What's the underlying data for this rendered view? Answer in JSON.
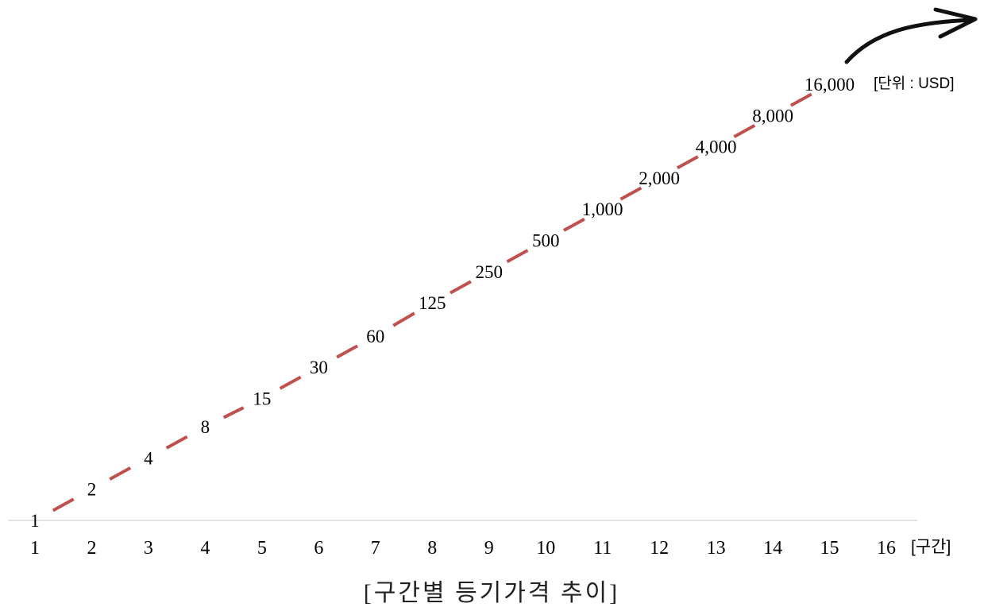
{
  "chart_data": {
    "type": "line",
    "title": "[구간별 등기가격 추이]",
    "x_unit_label": "[구간]",
    "y_unit_label": "[단위 : USD]",
    "categories": [
      "1",
      "2",
      "3",
      "4",
      "5",
      "6",
      "7",
      "8",
      "9",
      "10",
      "11",
      "12",
      "13",
      "14",
      "15",
      "16"
    ],
    "series": [
      {
        "values": [
          1,
          2,
          4,
          8,
          15,
          30,
          60,
          125,
          250,
          500,
          1000,
          2000,
          4000,
          8000,
          16000,
          null
        ],
        "labels": [
          "1",
          "2",
          "4",
          "8",
          "15",
          "30",
          "60",
          "125",
          "250",
          "500",
          "1,000",
          "2,000",
          "4,000",
          "8,000",
          "16,000",
          ""
        ],
        "color": "#c0504d",
        "scale": "log"
      }
    ],
    "grid": false,
    "legend": "none",
    "trend_arrow": "up-right"
  }
}
